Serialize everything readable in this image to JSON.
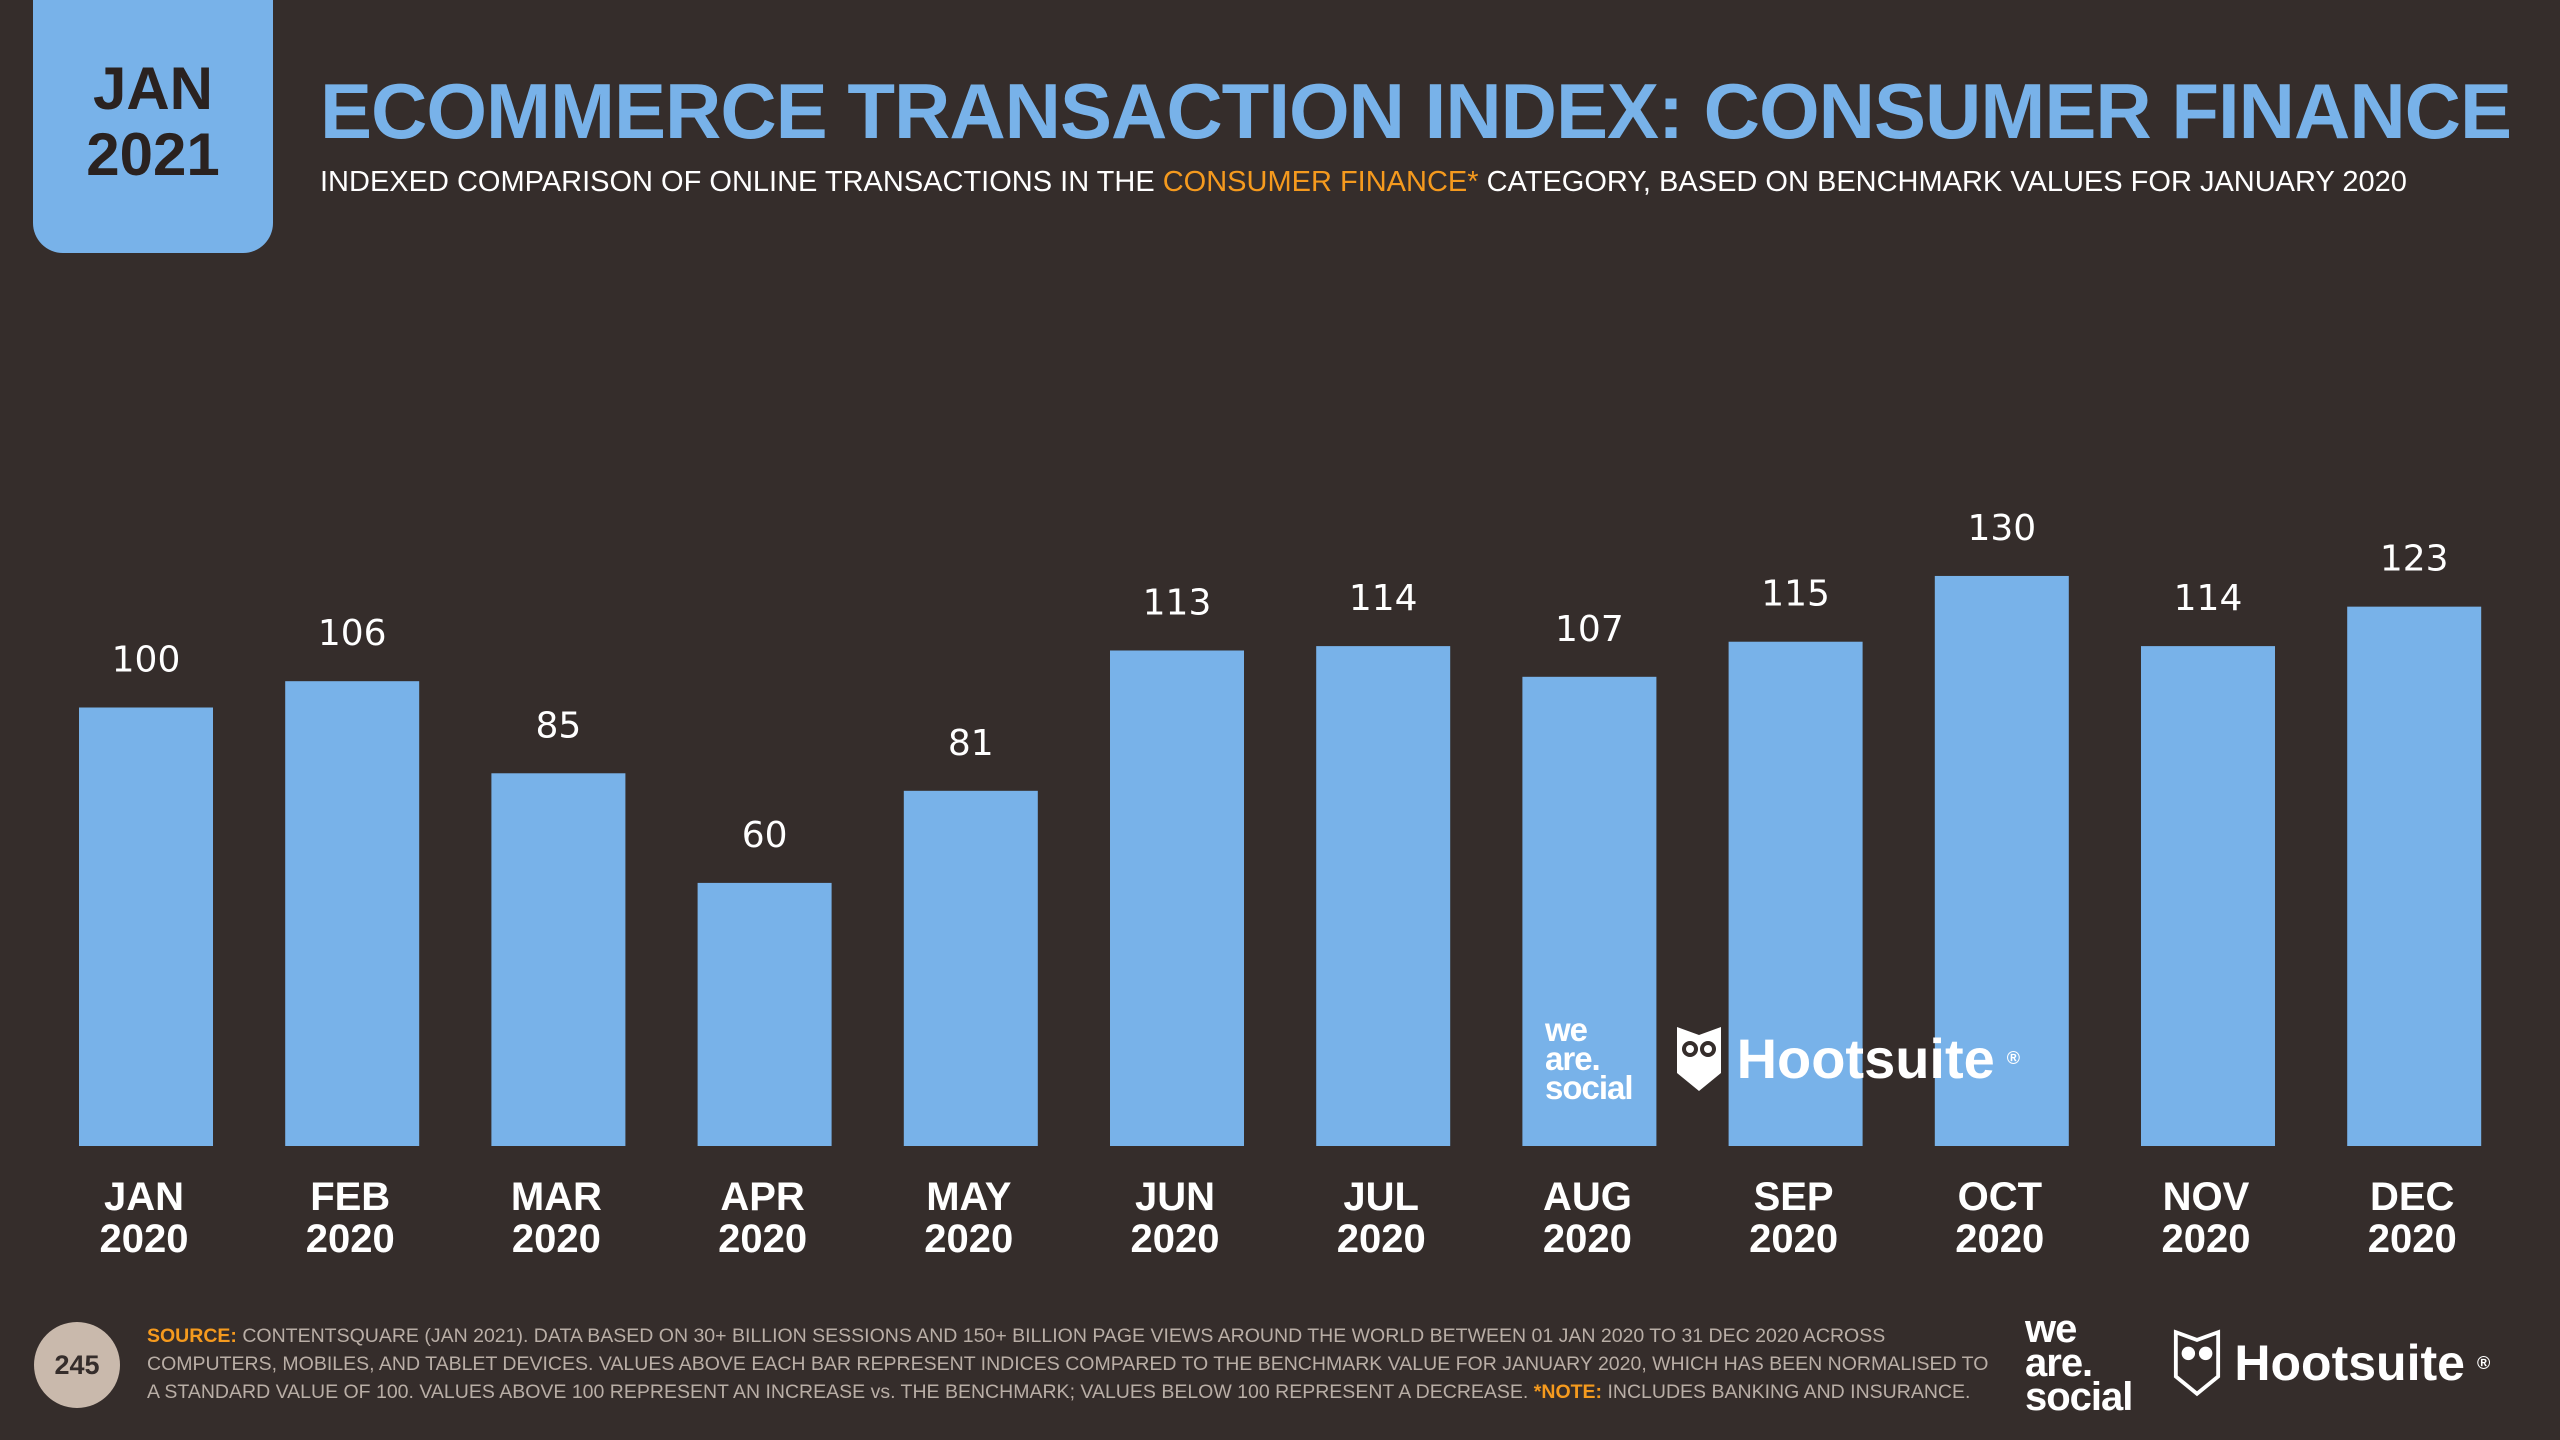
{
  "badge": {
    "month": "JAN",
    "year": "2021"
  },
  "title": "ECOMMERCE TRANSACTION INDEX: CONSUMER FINANCE",
  "subtitle": {
    "before": "INDEXED COMPARISON OF ONLINE TRANSACTIONS IN THE ",
    "highlight": "CONSUMER FINANCE*",
    "after": " CATEGORY, BASED ON BENCHMARK VALUES FOR JANUARY 2020"
  },
  "colors": {
    "background": "#352d2b",
    "bar": "#78b2e9",
    "accent": "#f59a1e",
    "text": "#ffffff"
  },
  "chart_data": {
    "type": "bar",
    "title": "ECOMMERCE TRANSACTION INDEX: CONSUMER FINANCE",
    "categories": [
      "JAN 2020",
      "FEB 2020",
      "MAR 2020",
      "APR 2020",
      "MAY 2020",
      "JUN 2020",
      "JUL 2020",
      "AUG 2020",
      "SEP 2020",
      "OCT 2020",
      "NOV 2020",
      "DEC 2020"
    ],
    "category_lines": [
      [
        "JAN",
        "2020"
      ],
      [
        "FEB",
        "2020"
      ],
      [
        "MAR",
        "2020"
      ],
      [
        "APR",
        "2020"
      ],
      [
        "MAY",
        "2020"
      ],
      [
        "JUN",
        "2020"
      ],
      [
        "JUL",
        "2020"
      ],
      [
        "AUG",
        "2020"
      ],
      [
        "SEP",
        "2020"
      ],
      [
        "OCT",
        "2020"
      ],
      [
        "NOV",
        "2020"
      ],
      [
        "DEC",
        "2020"
      ]
    ],
    "values": [
      100,
      106,
      85,
      60,
      81,
      113,
      114,
      107,
      115,
      130,
      114,
      123
    ],
    "xlabel": "",
    "ylabel": "",
    "ylim": [
      0,
      130
    ],
    "grid": false,
    "data_labels": true
  },
  "watermark": {
    "we_are_social": [
      "we",
      "are.",
      "social"
    ],
    "brand": "Hootsuite",
    "reg": "®"
  },
  "footer": {
    "page_number": "245",
    "source_label": "SOURCE:",
    "source_text": " CONTENTSQUARE (JAN 2021). DATA BASED ON 30+ BILLION SESSIONS AND 150+ BILLION PAGE VIEWS AROUND THE WORLD BETWEEN 01 JAN 2020 TO 31 DEC 2020 ACROSS COMPUTERS, MOBILES, AND TABLET DEVICES. VALUES ABOVE EACH BAR REPRESENT INDICES COMPARED TO THE BENCHMARK VALUE FOR JANUARY 2020, WHICH HAS BEEN NORMALISED TO A STANDARD VALUE OF 100. VALUES ABOVE 100 REPRESENT AN INCREASE vs. THE BENCHMARK; VALUES BELOW 100 REPRESENT A DECREASE. ",
    "note_label": "*NOTE:",
    "note_text": " INCLUDES BANKING AND INSURANCE."
  }
}
